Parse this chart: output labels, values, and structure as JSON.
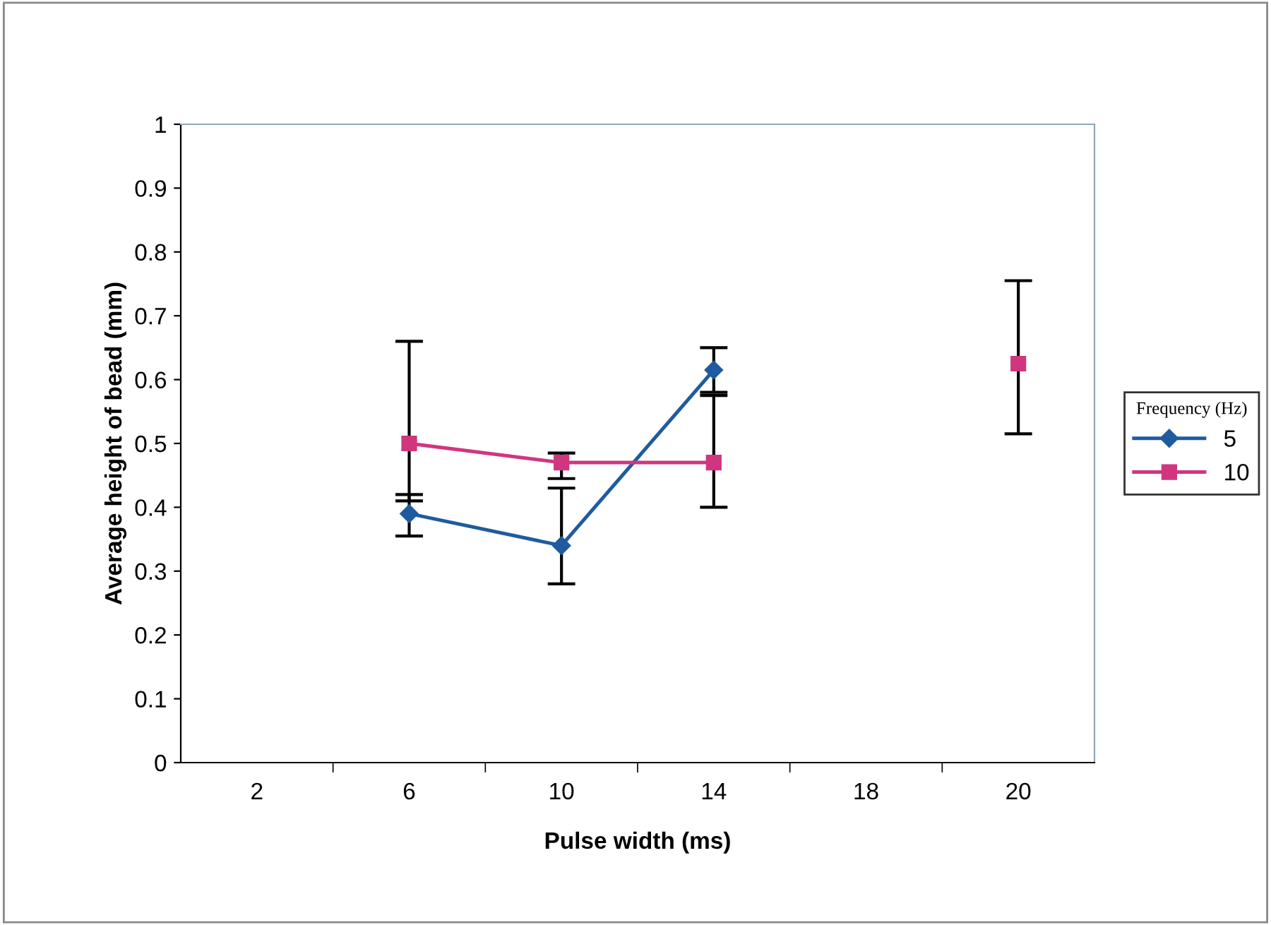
{
  "chart_data": {
    "type": "line",
    "xlabel": "Pulse width (ms)",
    "ylabel": "Average height of bead (mm)",
    "legend_title": "Frequency (Hz)",
    "categories": [
      "2",
      "6",
      "10",
      "14",
      "18",
      "20"
    ],
    "series": [
      {
        "name": "5",
        "color": "#1f5b9e",
        "marker": "diamond",
        "values": [
          null,
          0.39,
          0.34,
          0.615,
          null,
          null
        ],
        "errors": [
          null,
          [
            0.355,
            0.42
          ],
          [
            0.28,
            0.43
          ],
          [
            0.58,
            0.65
          ],
          null,
          null
        ]
      },
      {
        "name": "10",
        "color": "#d0367f",
        "marker": "square",
        "values": [
          null,
          0.5,
          0.47,
          0.47,
          null,
          0.625
        ],
        "errors": [
          null,
          [
            0.41,
            0.66
          ],
          [
            0.445,
            0.485
          ],
          [
            0.4,
            0.575
          ],
          null,
          [
            0.515,
            0.755
          ]
        ]
      }
    ],
    "ylim": [
      0,
      1
    ],
    "yticks": [
      0,
      0.1,
      0.2,
      0.3,
      0.4,
      0.5,
      0.6,
      0.7,
      0.8,
      0.9,
      1
    ],
    "grid": false,
    "legend": "right",
    "line_style": "solid"
  }
}
